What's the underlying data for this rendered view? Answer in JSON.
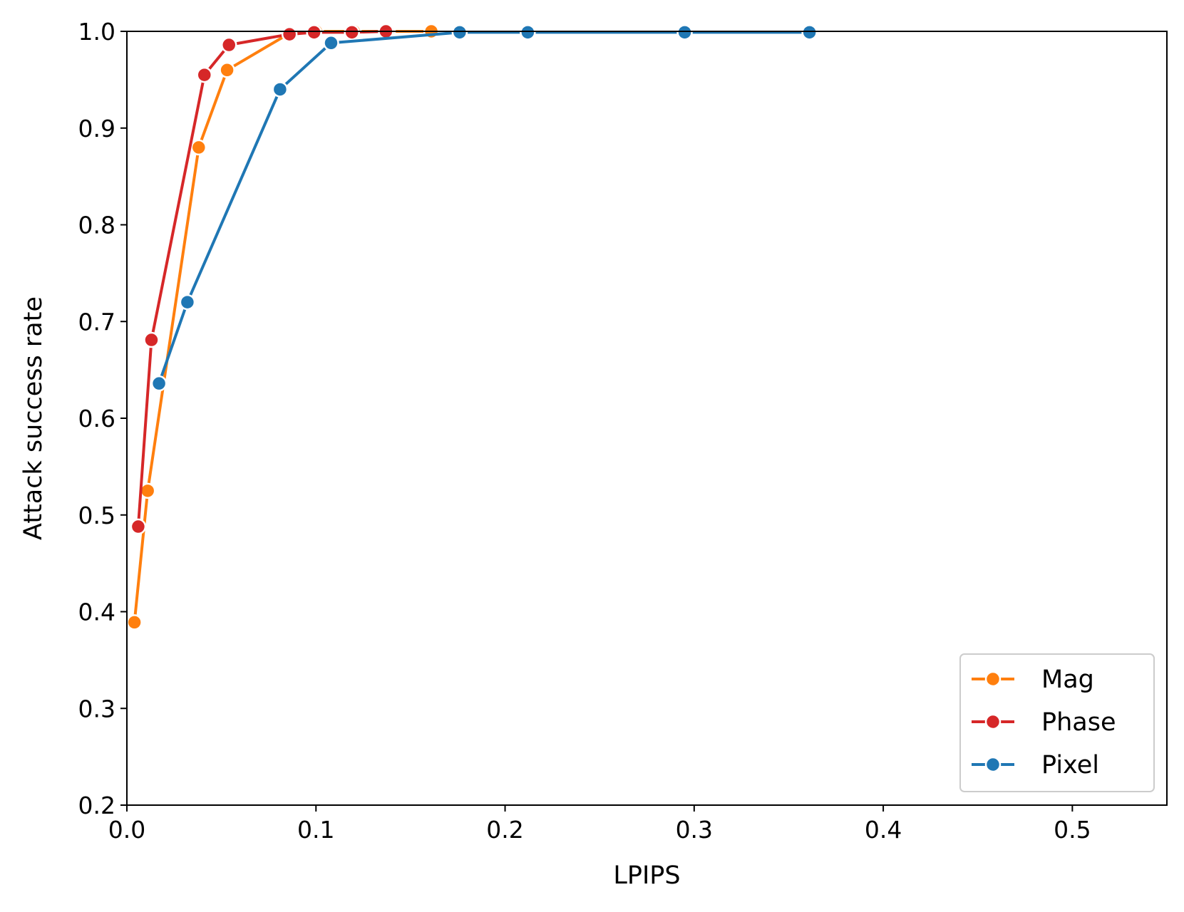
{
  "chart_data": {
    "type": "line",
    "title": "",
    "xlabel": "LPIPS",
    "ylabel": "Attack success rate",
    "xlim": [
      0,
      0.55
    ],
    "ylim": [
      0.2,
      1.0
    ],
    "xticks": [
      "0.0",
      "0.1",
      "0.2",
      "0.3",
      "0.4",
      "0.5"
    ],
    "yticks": [
      "0.2",
      "0.3",
      "0.4",
      "0.5",
      "0.6",
      "0.7",
      "0.8",
      "0.9",
      "1.0"
    ],
    "grid": false,
    "legend_position": "lower-right",
    "series": [
      {
        "name": "Mag",
        "color": "#ff7f0e",
        "x": [
          0.004,
          0.011,
          0.038,
          0.053,
          0.086,
          0.1,
          0.12,
          0.138,
          0.161
        ],
        "y": [
          0.389,
          0.525,
          0.88,
          0.96,
          0.998,
          1.0,
          1.0,
          1.0,
          1.0
        ]
      },
      {
        "name": "Phase",
        "color": "#d62728",
        "x": [
          0.006,
          0.013,
          0.041,
          0.054,
          0.086,
          0.099,
          0.119,
          0.137
        ],
        "y": [
          0.488,
          0.681,
          0.955,
          0.986,
          0.997,
          0.999,
          0.999,
          1.0
        ]
      },
      {
        "name": "Pixel",
        "color": "#1f77b4",
        "x": [
          0.017,
          0.032,
          0.081,
          0.108,
          0.176,
          0.212,
          0.295,
          0.361
        ],
        "y": [
          0.636,
          0.72,
          0.94,
          0.988,
          0.999,
          0.999,
          0.999,
          0.999
        ]
      }
    ]
  }
}
